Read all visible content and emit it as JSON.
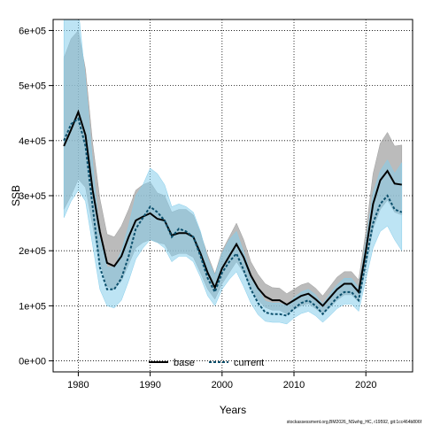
{
  "chart_data": {
    "type": "line",
    "xlabel": "Years",
    "ylabel": "SSB",
    "xlim": [
      1976.5,
      2026.5
    ],
    "ylim": [
      -20000,
      620000
    ],
    "x_ticks": [
      1980,
      1990,
      2000,
      2010,
      2020
    ],
    "x_tick_labels": [
      "1980",
      "1990",
      "2000",
      "2010",
      "2020"
    ],
    "y_ticks": [
      0,
      100000,
      200000,
      300000,
      400000,
      500000,
      600000
    ],
    "y_tick_labels": [
      "0e+00",
      "1e+05",
      "2e+05",
      "3e+05",
      "4e+05",
      "5e+05",
      "6e+05"
    ],
    "grid": true,
    "legend_position": "bottom-center",
    "colors": {
      "base_line": "#000000",
      "base_band": "#9e9e9e",
      "current_line": "#0b4f6c",
      "current_band": "#87ceeb"
    },
    "footer": "stockassessment.org,BM2026_NSwhg_HC, r19592, git:1cc464b806f",
    "x": [
      1978,
      1979,
      1980,
      1981,
      1982,
      1983,
      1984,
      1985,
      1986,
      1987,
      1988,
      1989,
      1990,
      1991,
      1992,
      1993,
      1994,
      1995,
      1996,
      1997,
      1998,
      1999,
      2000,
      2001,
      2002,
      2003,
      2004,
      2005,
      2006,
      2007,
      2008,
      2009,
      2010,
      2011,
      2012,
      2013,
      2014,
      2015,
      2016,
      2017,
      2018,
      2019,
      2020,
      2021,
      2022,
      2023,
      2024,
      2025
    ],
    "series": [
      {
        "name": "base",
        "style": "solid",
        "values": [
          390000,
          420000,
          452000,
          410000,
          310000,
          235000,
          178000,
          172000,
          190000,
          225000,
          255000,
          262000,
          268000,
          258000,
          255000,
          228000,
          232000,
          232000,
          225000,
          195000,
          160000,
          133000,
          168000,
          190000,
          212000,
          188000,
          155000,
          132000,
          117000,
          110000,
          110000,
          102000,
          110000,
          118000,
          122000,
          112000,
          100000,
          115000,
          130000,
          140000,
          140000,
          125000,
          200000,
          285000,
          328000,
          345000,
          322000,
          320000
        ],
        "lower": [
          275000,
          300000,
          330000,
          315000,
          245000,
          180000,
          135000,
          130000,
          145000,
          175000,
          205000,
          215000,
          220000,
          215000,
          212000,
          190000,
          195000,
          195000,
          188000,
          160000,
          130000,
          112000,
          140000,
          160000,
          180000,
          160000,
          132000,
          110000,
          97000,
          92000,
          92000,
          85000,
          93000,
          100000,
          104000,
          95000,
          85000,
          97000,
          110000,
          120000,
          120000,
          107000,
          170000,
          240000,
          275000,
          292000,
          270000,
          265000
        ],
        "upper": [
          550000,
          585000,
          600000,
          530000,
          395000,
          295000,
          230000,
          225000,
          245000,
          275000,
          310000,
          320000,
          325000,
          305000,
          300000,
          270000,
          275000,
          275000,
          265000,
          232000,
          192000,
          158000,
          200000,
          225000,
          250000,
          220000,
          180000,
          157000,
          140000,
          133000,
          132000,
          122000,
          130000,
          138000,
          142000,
          132000,
          118000,
          135000,
          152000,
          162000,
          162000,
          147000,
          235000,
          340000,
          395000,
          415000,
          390000,
          392000
        ]
      },
      {
        "name": "current",
        "style": "dashed",
        "values": [
          400000,
          430000,
          440000,
          390000,
          280000,
          170000,
          130000,
          130000,
          150000,
          190000,
          240000,
          260000,
          280000,
          270000,
          255000,
          225000,
          240000,
          235000,
          225000,
          190000,
          150000,
          125000,
          160000,
          180000,
          195000,
          165000,
          130000,
          105000,
          88000,
          85000,
          85000,
          82000,
          95000,
          105000,
          110000,
          100000,
          85000,
          100000,
          115000,
          125000,
          125000,
          110000,
          180000,
          250000,
          285000,
          300000,
          275000,
          270000
        ],
        "lower": [
          260000,
          290000,
          310000,
          290000,
          210000,
          130000,
          100000,
          96000,
          110000,
          145000,
          185000,
          205000,
          220000,
          215000,
          205000,
          180000,
          190000,
          190000,
          180000,
          152000,
          118000,
          100000,
          130000,
          148000,
          162000,
          135000,
          105000,
          84000,
          72000,
          70000,
          70000,
          67000,
          78000,
          86000,
          90000,
          82000,
          70000,
          82000,
          95000,
          103000,
          103000,
          90000,
          148000,
          205000,
          235000,
          245000,
          220000,
          200000
        ],
        "upper": [
          620000,
          700000,
          640000,
          510000,
          360000,
          225000,
          170000,
          170000,
          200000,
          245000,
          300000,
          320000,
          350000,
          340000,
          320000,
          280000,
          285000,
          280000,
          270000,
          235000,
          185000,
          155000,
          195000,
          220000,
          235000,
          198000,
          158000,
          130000,
          108000,
          105000,
          105000,
          100000,
          115000,
          125000,
          130000,
          120000,
          103000,
          122000,
          138000,
          150000,
          150000,
          133000,
          215000,
          305000,
          345000,
          365000,
          340000,
          360000
        ]
      }
    ]
  }
}
